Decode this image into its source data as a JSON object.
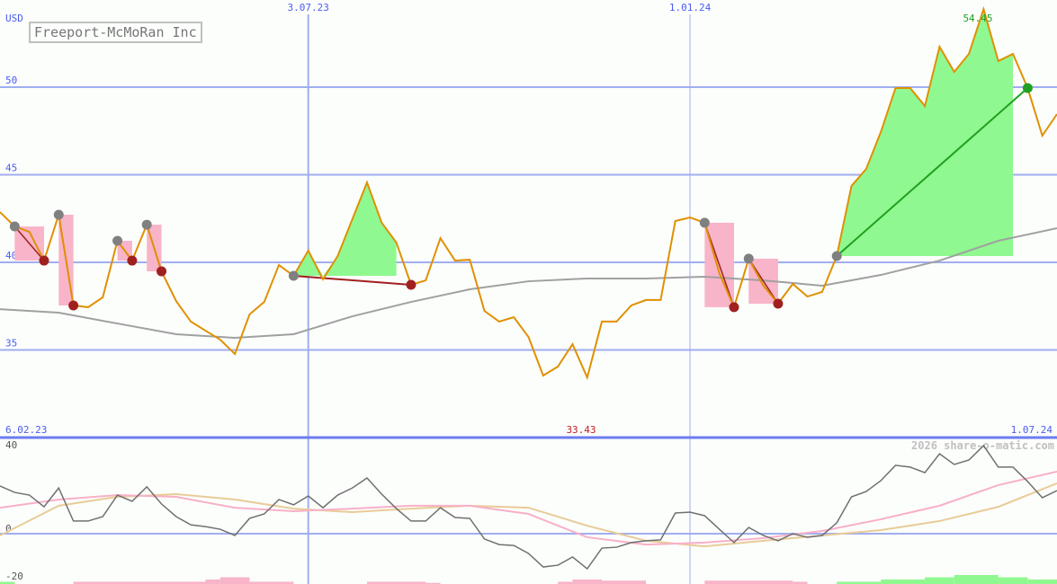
{
  "chart_data": [
    {
      "type": "line",
      "title": "Freeport-McMoRan Inc",
      "ylabel": "USD",
      "ylim": [
        32,
        55
      ],
      "yticks": [
        35,
        40,
        45,
        50
      ],
      "date_ticks": [
        {
          "label": "6.02.23",
          "week": 0,
          "position": "bottom-left"
        },
        {
          "label": "3.07.23",
          "week": 21
        },
        {
          "label": "1.01.24",
          "week": 47
        },
        {
          "label": "1.07.24",
          "week": 72,
          "position": "bottom-right"
        }
      ],
      "min_label": "33.43",
      "max_label": "54.45",
      "series": [
        {
          "role": "price",
          "color": "#e09000",
          "values": [
            42.87,
            42.05,
            41.74,
            40.1,
            42.72,
            37.54,
            37.44,
            38.0,
            41.23,
            40.1,
            42.15,
            39.49,
            37.79,
            36.62,
            36.1,
            35.59,
            34.77,
            37.03,
            37.74,
            39.85,
            39.23,
            40.67,
            39.03,
            40.36,
            42.46,
            44.56,
            42.26,
            41.13,
            38.72,
            38.97,
            41.38,
            40.1,
            40.15,
            37.23,
            36.62,
            36.87,
            35.74,
            33.54,
            34.05,
            35.33,
            33.43,
            36.62,
            36.62,
            37.54,
            37.85,
            37.85,
            42.36,
            42.56,
            42.26,
            39.38,
            37.44,
            40.21,
            38.67,
            37.64,
            38.77,
            38.05,
            38.31,
            40.36,
            44.36,
            45.33,
            47.44,
            49.95,
            49.95,
            48.92,
            52.31,
            50.87,
            51.9,
            54.45,
            51.49,
            51.9,
            49.95,
            47.23,
            48.46
          ]
        },
        {
          "role": "moving-average",
          "color": "#a0a0a0",
          "sample_every_weeks": 4,
          "values": [
            37.33,
            37.13,
            36.51,
            35.9,
            35.69,
            35.9,
            36.92,
            37.74,
            38.46,
            38.92,
            39.08,
            39.08,
            39.18,
            38.97,
            38.67,
            39.28,
            40.1,
            41.23,
            41.95
          ]
        }
      ],
      "signals": [
        {
          "type": "sell",
          "from": 1,
          "to": 3
        },
        {
          "type": "sell",
          "from": 4,
          "to": 5
        },
        {
          "type": "sell",
          "from": 8,
          "to": 9
        },
        {
          "type": "sell",
          "from": 10,
          "to": 11
        },
        {
          "type": "buy",
          "from": 20,
          "to": 28,
          "result": "loss"
        },
        {
          "type": "sell",
          "from": 48,
          "to": 50
        },
        {
          "type": "sell",
          "from": 51,
          "to": 53
        },
        {
          "type": "buy",
          "from": 57,
          "to": 70,
          "result": "gain"
        }
      ],
      "colors": {
        "grid": "#a0aef0",
        "up_fill": "#90f890",
        "down_fill": "#f8b4c8",
        "peak": "#808080",
        "trough": "#a02020",
        "gain": "#20a020"
      }
    },
    {
      "type": "line",
      "ylim": [
        -22,
        42
      ],
      "yticks": [
        -20,
        0,
        40
      ],
      "series": [
        {
          "role": "oscillator",
          "color": "#707070",
          "values": [
            21.5,
            18.6,
            17.4,
            12.1,
            20.6,
            5.7,
            5.7,
            7.7,
            17.4,
            14.6,
            21.1,
            13.4,
            7.7,
            4.0,
            3.2,
            2.0,
            -0.8,
            6.9,
            8.9,
            15.4,
            13.0,
            17.0,
            11.7,
            17.4,
            20.6,
            25.1,
            17.8,
            11.3,
            5.7,
            5.7,
            11.7,
            7.3,
            6.9,
            -2.4,
            -4.9,
            -5.3,
            -8.9,
            -15.0,
            -14.2,
            -10.5,
            -15.8,
            -6.5,
            -6.1,
            -4.0,
            -3.2,
            -2.8,
            9.3,
            9.7,
            8.1,
            2.0,
            -4.0,
            2.8,
            -0.8,
            -3.2,
            0,
            -1.6,
            -0.8,
            4.9,
            16.6,
            19.0,
            23.9,
            30.8,
            30.0,
            27.5,
            36.0,
            31.2,
            33.2,
            39.7,
            30.0,
            30.0,
            23.5,
            16.2,
            19.4
          ]
        },
        {
          "role": "signal-fast",
          "color": "#f8b0c8",
          "sample_every_weeks": 4,
          "values": [
            11.7,
            15.4,
            17.4,
            16.6,
            11.7,
            10.1,
            11.3,
            12.6,
            12.6,
            8.9,
            -1.6,
            -4.9,
            -4.0,
            -2.0,
            1.2,
            6.5,
            12.6,
            21.9,
            28.0
          ]
        },
        {
          "role": "signal-slow",
          "color": "#e8cc98",
          "sample_every_weeks": 4,
          "values": [
            -0.8,
            12.6,
            16.6,
            17.8,
            15.4,
            11.3,
            9.7,
            11.3,
            12.6,
            11.7,
            3.6,
            -3.2,
            -5.7,
            -3.2,
            -0.8,
            1.6,
            5.7,
            12.1,
            22.7
          ]
        }
      ],
      "histogram": [
        {
          "from": 0,
          "to": 1,
          "value": 1
        },
        {
          "from": 5,
          "to": 14,
          "value": -1
        },
        {
          "from": 14,
          "to": 15,
          "value": -2
        },
        {
          "from": 15,
          "to": 17,
          "value": -3
        },
        {
          "from": 17,
          "to": 20,
          "value": -1
        },
        {
          "from": 25,
          "to": 29,
          "value": -1
        },
        {
          "from": 29,
          "to": 30,
          "value": -0.5
        },
        {
          "from": 38,
          "to": 39,
          "value": -1
        },
        {
          "from": 39,
          "to": 41,
          "value": -2
        },
        {
          "from": 41,
          "to": 44,
          "value": -1.5
        },
        {
          "from": 48,
          "to": 54,
          "value": -1.5
        },
        {
          "from": 54,
          "to": 55,
          "value": -1
        },
        {
          "from": 57,
          "to": 60,
          "value": 1
        },
        {
          "from": 60,
          "to": 63,
          "value": 2
        },
        {
          "from": 63,
          "to": 65,
          "value": 3
        },
        {
          "from": 65,
          "to": 68,
          "value": 4
        },
        {
          "from": 68,
          "to": 70,
          "value": 3
        },
        {
          "from": 70,
          "to": 72,
          "value": 2
        }
      ]
    }
  ],
  "labels": {
    "currency": "USD",
    "title": "Freeport-McMoRan Inc",
    "watermark": "2026 share-o-matic.com"
  }
}
